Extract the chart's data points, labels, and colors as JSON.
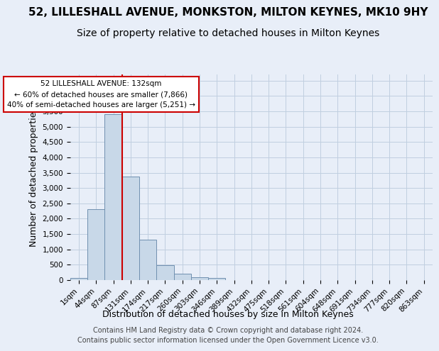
{
  "title": "52, LILLESHALL AVENUE, MONKSTON, MILTON KEYNES, MK10 9HY",
  "subtitle": "Size of property relative to detached houses in Milton Keynes",
  "xlabel": "Distribution of detached houses by size in Milton Keynes",
  "ylabel": "Number of detached properties",
  "footer_line1": "Contains HM Land Registry data © Crown copyright and database right 2024.",
  "footer_line2": "Contains public sector information licensed under the Open Government Licence v3.0.",
  "bar_values": [
    75,
    2300,
    5400,
    3380,
    1320,
    480,
    200,
    90,
    60,
    0,
    0,
    0,
    0,
    0,
    0,
    0,
    0,
    0,
    0,
    0,
    0
  ],
  "bar_labels": [
    "1sqm",
    "44sqm",
    "87sqm",
    "131sqm",
    "174sqm",
    "217sqm",
    "260sqm",
    "303sqm",
    "346sqm",
    "389sqm",
    "432sqm",
    "475sqm",
    "518sqm",
    "561sqm",
    "604sqm",
    "648sqm",
    "691sqm",
    "734sqm",
    "777sqm",
    "820sqm",
    "863sqm"
  ],
  "bar_color": "#c8d8e8",
  "bar_edge_color": "#7090b0",
  "grid_color": "#c0cfe0",
  "bg_color": "#e8eef8",
  "annotation_text": "52 LILLESHALL AVENUE: 132sqm\n← 60% of detached houses are smaller (7,866)\n40% of semi-detached houses are larger (5,251) →",
  "vline_x": 2.5,
  "vline_color": "#cc0000",
  "ylim": [
    0,
    6700
  ],
  "yticks": [
    0,
    500,
    1000,
    1500,
    2000,
    2500,
    3000,
    3500,
    4000,
    4500,
    5000,
    5500,
    6000,
    6500
  ],
  "annotation_box_facecolor": "#ffffff",
  "annotation_box_edgecolor": "#cc0000",
  "title_fontsize": 11,
  "subtitle_fontsize": 10,
  "axis_label_fontsize": 9,
  "tick_fontsize": 7.5,
  "footer_fontsize": 7,
  "annotation_fontsize": 7.5
}
